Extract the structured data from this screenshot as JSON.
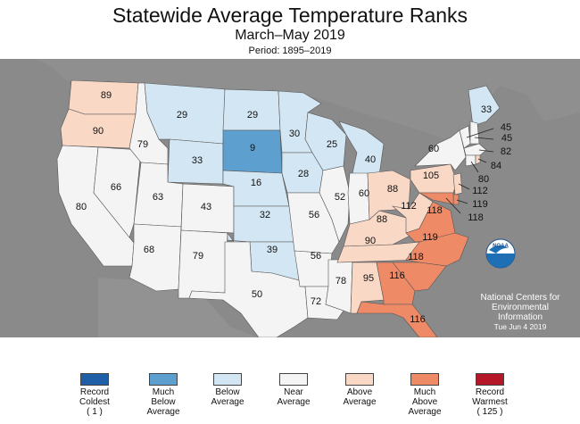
{
  "header": {
    "title": "Statewide Average Temperature Ranks",
    "subtitle": "March–May 2019",
    "period": "Period: 1895–2019"
  },
  "colors": {
    "record_coldest": "#1f5fa8",
    "much_below": "#5d9fcf",
    "below": "#d3e6f3",
    "near": "#f4f4f4",
    "above": "#f9d8c6",
    "much_above": "#ef8a66",
    "record_warmest": "#b51729",
    "background": "#8a8a8a"
  },
  "states": [
    {
      "name": "WA",
      "rank": "89",
      "category": "above"
    },
    {
      "name": "OR",
      "rank": "90",
      "category": "above"
    },
    {
      "name": "CA",
      "rank": "80",
      "category": "near"
    },
    {
      "name": "NV",
      "rank": "66",
      "category": "near"
    },
    {
      "name": "ID",
      "rank": "79",
      "category": "near"
    },
    {
      "name": "MT",
      "rank": "29",
      "category": "below"
    },
    {
      "name": "WY",
      "rank": "33",
      "category": "below"
    },
    {
      "name": "UT",
      "rank": "63",
      "category": "near"
    },
    {
      "name": "AZ",
      "rank": "68",
      "category": "near"
    },
    {
      "name": "CO",
      "rank": "43",
      "category": "near"
    },
    {
      "name": "NM",
      "rank": "79",
      "category": "near"
    },
    {
      "name": "ND",
      "rank": "29",
      "category": "below"
    },
    {
      "name": "SD",
      "rank": "9",
      "category": "much_below"
    },
    {
      "name": "NE",
      "rank": "16",
      "category": "below"
    },
    {
      "name": "KS",
      "rank": "32",
      "category": "below"
    },
    {
      "name": "OK",
      "rank": "39",
      "category": "below"
    },
    {
      "name": "TX",
      "rank": "50",
      "category": "near"
    },
    {
      "name": "MN",
      "rank": "30",
      "category": "below"
    },
    {
      "name": "IA",
      "rank": "28",
      "category": "below"
    },
    {
      "name": "MO",
      "rank": "56",
      "category": "near"
    },
    {
      "name": "AR",
      "rank": "56",
      "category": "near"
    },
    {
      "name": "LA",
      "rank": "72",
      "category": "near"
    },
    {
      "name": "WI",
      "rank": "25",
      "category": "below"
    },
    {
      "name": "IL",
      "rank": "52",
      "category": "near"
    },
    {
      "name": "MS",
      "rank": "78",
      "category": "near"
    },
    {
      "name": "MI",
      "rank": "40",
      "category": "below"
    },
    {
      "name": "IN",
      "rank": "60",
      "category": "near"
    },
    {
      "name": "KY",
      "rank": "88",
      "category": "above"
    },
    {
      "name": "TN",
      "rank": "90",
      "category": "above"
    },
    {
      "name": "AL",
      "rank": "95",
      "category": "above"
    },
    {
      "name": "OH",
      "rank": "88",
      "category": "above"
    },
    {
      "name": "WV",
      "rank": "112",
      "category": "above"
    },
    {
      "name": "VA",
      "rank": "118",
      "category": "much_above"
    },
    {
      "name": "NC",
      "rank": "119",
      "category": "much_above"
    },
    {
      "name": "SC",
      "rank": "118",
      "category": "much_above"
    },
    {
      "name": "GA",
      "rank": "116",
      "category": "much_above"
    },
    {
      "name": "FL",
      "rank": "116",
      "category": "much_above"
    },
    {
      "name": "PA",
      "rank": "105",
      "category": "above"
    },
    {
      "name": "NY",
      "rank": "60",
      "category": "near"
    },
    {
      "name": "ME",
      "rank": "33",
      "category": "below"
    },
    {
      "name": "VT",
      "rank": "45",
      "category": "near"
    },
    {
      "name": "NH",
      "rank": "45",
      "category": "near"
    },
    {
      "name": "MA",
      "rank": "82",
      "category": "near"
    },
    {
      "name": "RI",
      "rank": "84",
      "category": "above"
    },
    {
      "name": "CT",
      "rank": "80",
      "category": "near"
    },
    {
      "name": "NJ",
      "rank": "112",
      "category": "above"
    },
    {
      "name": "DE",
      "rank": "119",
      "category": "much_above"
    },
    {
      "name": "MD",
      "rank": "118",
      "category": "much_above"
    }
  ],
  "credit": {
    "line1": "National Centers for",
    "line2": "Environmental",
    "line3": "Information",
    "date": "Tue Jun  4 2019",
    "logo_text": "NOAA"
  },
  "legend": [
    {
      "label": "Record\nColdest\n( 1 )",
      "color": "#1f5fa8"
    },
    {
      "label": "Much\nBelow\nAverage",
      "color": "#5d9fcf"
    },
    {
      "label": "Below\nAverage",
      "color": "#d3e6f3"
    },
    {
      "label": "Near\nAverage",
      "color": "#f4f4f4"
    },
    {
      "label": "Above\nAverage",
      "color": "#f9d8c6"
    },
    {
      "label": "Much\nAbove\nAverage",
      "color": "#ef8a66"
    },
    {
      "label": "Record\nWarmest\n( 125 )",
      "color": "#b51729"
    }
  ]
}
